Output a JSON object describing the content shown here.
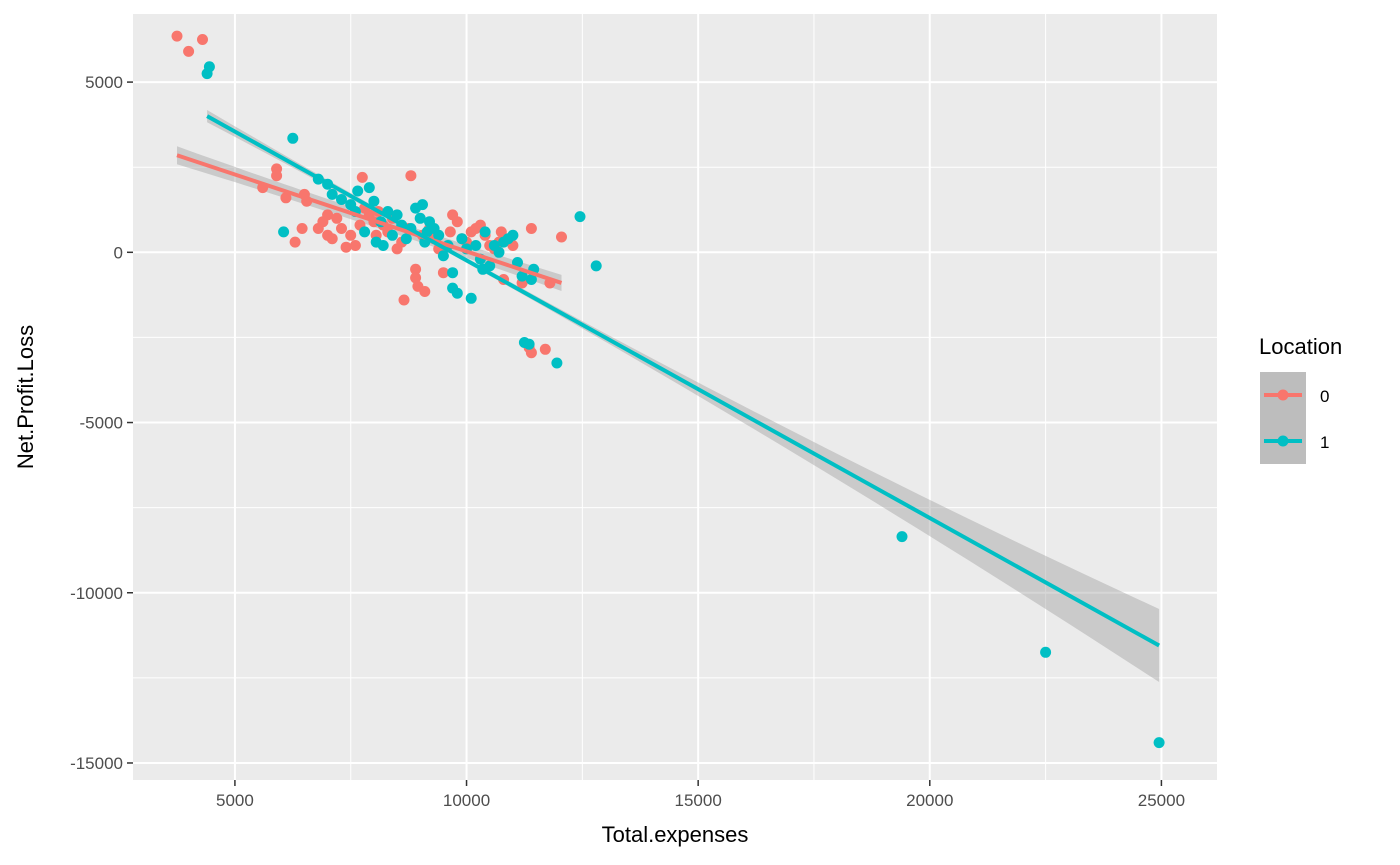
{
  "chart_data": {
    "type": "scatter",
    "xlabel": "Total.expenses",
    "ylabel": "Net.Profit.Loss",
    "xlim": [
      2800,
      26200
    ],
    "ylim": [
      -15500,
      7000
    ],
    "x_ticks": [
      5000,
      10000,
      15000,
      20000,
      25000
    ],
    "y_ticks": [
      5000,
      0,
      -5000,
      -10000,
      -15000
    ],
    "x_tick_labels": [
      "5000",
      "10000",
      "15000",
      "20000",
      "25000"
    ],
    "y_tick_labels": [
      "5000",
      "0",
      "-5000",
      "-10000",
      "-15000"
    ],
    "grid": true,
    "legend": {
      "title": "Location",
      "placement": "right",
      "items": [
        {
          "label": "0",
          "color": "#F8766D"
        },
        {
          "label": "1",
          "color": "#00BFC4"
        }
      ]
    },
    "series": [
      {
        "name": "0",
        "color": "#F8766D",
        "points": [
          [
            3750,
            6350
          ],
          [
            4000,
            5900
          ],
          [
            4300,
            6250
          ],
          [
            5600,
            1900
          ],
          [
            5900,
            2450
          ],
          [
            5900,
            2250
          ],
          [
            6100,
            1600
          ],
          [
            6300,
            300
          ],
          [
            6500,
            1700
          ],
          [
            6550,
            1500
          ],
          [
            6450,
            700
          ],
          [
            6800,
            700
          ],
          [
            6900,
            900
          ],
          [
            7000,
            1100
          ],
          [
            7000,
            500
          ],
          [
            7100,
            400
          ],
          [
            7200,
            1000
          ],
          [
            7300,
            700
          ],
          [
            7400,
            150
          ],
          [
            7500,
            500
          ],
          [
            7600,
            200
          ],
          [
            7700,
            800
          ],
          [
            7750,
            2200
          ],
          [
            7800,
            1300
          ],
          [
            7900,
            1100
          ],
          [
            8000,
            900
          ],
          [
            8050,
            500
          ],
          [
            8100,
            1200
          ],
          [
            8200,
            800
          ],
          [
            8300,
            600
          ],
          [
            8400,
            1000
          ],
          [
            8500,
            100
          ],
          [
            8600,
            300
          ],
          [
            8650,
            -1400
          ],
          [
            8750,
            700
          ],
          [
            8800,
            2250
          ],
          [
            8900,
            -500
          ],
          [
            8900,
            -750
          ],
          [
            8950,
            -1000
          ],
          [
            9050,
            500
          ],
          [
            9100,
            -1150
          ],
          [
            9200,
            700
          ],
          [
            9300,
            400
          ],
          [
            9400,
            100
          ],
          [
            9500,
            -600
          ],
          [
            9650,
            600
          ],
          [
            9700,
            1100
          ],
          [
            9800,
            900
          ],
          [
            9900,
            400
          ],
          [
            10000,
            300
          ],
          [
            10100,
            600
          ],
          [
            10200,
            700
          ],
          [
            10300,
            800
          ],
          [
            10400,
            500
          ],
          [
            10500,
            200
          ],
          [
            10600,
            100
          ],
          [
            10700,
            300
          ],
          [
            10750,
            600
          ],
          [
            10800,
            -800
          ],
          [
            11000,
            200
          ],
          [
            11200,
            -900
          ],
          [
            11350,
            -2800
          ],
          [
            11400,
            -2950
          ],
          [
            11400,
            700
          ],
          [
            11700,
            -2850
          ],
          [
            11800,
            -900
          ],
          [
            12050,
            450
          ]
        ],
        "fit": {
          "x": [
            3750,
            12050
          ],
          "y": [
            2850,
            -900
          ]
        }
      },
      {
        "name": "1",
        "color": "#00BFC4",
        "points": [
          [
            4400,
            5250
          ],
          [
            4450,
            5450
          ],
          [
            6050,
            600
          ],
          [
            6250,
            3350
          ],
          [
            6800,
            2150
          ],
          [
            7000,
            2000
          ],
          [
            7100,
            1700
          ],
          [
            7300,
            1550
          ],
          [
            7500,
            1400
          ],
          [
            7600,
            1200
          ],
          [
            7650,
            1800
          ],
          [
            7800,
            600
          ],
          [
            7900,
            1900
          ],
          [
            8000,
            1500
          ],
          [
            8050,
            300
          ],
          [
            8150,
            900
          ],
          [
            8200,
            200
          ],
          [
            8300,
            1200
          ],
          [
            8400,
            500
          ],
          [
            8500,
            1100
          ],
          [
            8600,
            800
          ],
          [
            8700,
            400
          ],
          [
            8800,
            700
          ],
          [
            8900,
            1300
          ],
          [
            9000,
            1000
          ],
          [
            9050,
            1400
          ],
          [
            9100,
            300
          ],
          [
            9150,
            600
          ],
          [
            9200,
            900
          ],
          [
            9300,
            700
          ],
          [
            9400,
            500
          ],
          [
            9500,
            -100
          ],
          [
            9600,
            200
          ],
          [
            9700,
            -600
          ],
          [
            9700,
            -1050
          ],
          [
            9800,
            -1200
          ],
          [
            9900,
            400
          ],
          [
            10000,
            100
          ],
          [
            10100,
            -1350
          ],
          [
            10200,
            200
          ],
          [
            10300,
            -200
          ],
          [
            10350,
            -500
          ],
          [
            10400,
            600
          ],
          [
            10500,
            -400
          ],
          [
            10600,
            200
          ],
          [
            10700,
            0
          ],
          [
            10800,
            300
          ],
          [
            10900,
            400
          ],
          [
            11000,
            500
          ],
          [
            11100,
            -300
          ],
          [
            11200,
            -700
          ],
          [
            11250,
            -2650
          ],
          [
            11350,
            -2700
          ],
          [
            11400,
            -800
          ],
          [
            11450,
            -500
          ],
          [
            11950,
            -3250
          ],
          [
            12450,
            1050
          ],
          [
            12800,
            -400
          ],
          [
            19400,
            -8350
          ],
          [
            22500,
            -11750
          ],
          [
            24950,
            -14400
          ]
        ],
        "fit": {
          "x": [
            4400,
            24950
          ],
          "y": [
            4000,
            -11550
          ]
        }
      }
    ]
  }
}
